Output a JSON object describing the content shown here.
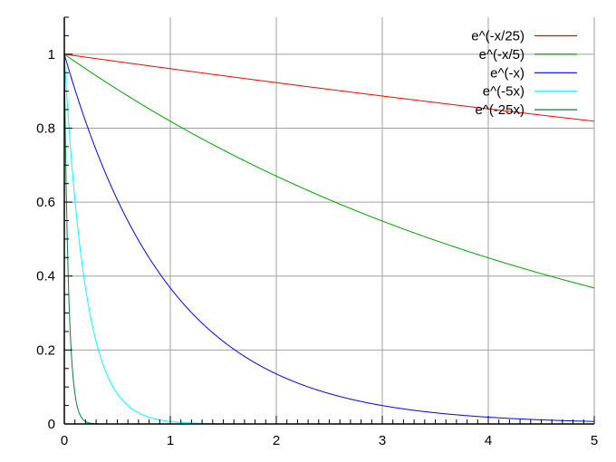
{
  "chart_data": {
    "type": "line",
    "title": "",
    "xlabel": "",
    "ylabel": "",
    "xlim": [
      0,
      5
    ],
    "ylim": [
      0,
      1.1
    ],
    "grid": true,
    "legend_position": "top-right",
    "x_ticks": [
      0,
      1,
      2,
      3,
      4,
      5
    ],
    "x_tick_labels": [
      "0",
      "1",
      "2",
      "3",
      "4",
      "5"
    ],
    "y_ticks": [
      0,
      0.2,
      0.4,
      0.6,
      0.8,
      1
    ],
    "y_tick_labels": [
      "0",
      "0.2",
      "0.4",
      "0.6",
      "0.8",
      "1"
    ],
    "series": [
      {
        "name": "e^(-x/25)",
        "rate": 0.04,
        "color": "#ff0000"
      },
      {
        "name": "e^(-x/5)",
        "rate": 0.2,
        "color": "#00a000"
      },
      {
        "name": "e^(-x)",
        "rate": 1,
        "color": "#0000ff"
      },
      {
        "name": "e^(-5x)",
        "rate": 5,
        "color": "#00ffff"
      },
      {
        "name": "e^(-25x)",
        "rate": 25,
        "color": "#008040"
      }
    ]
  }
}
